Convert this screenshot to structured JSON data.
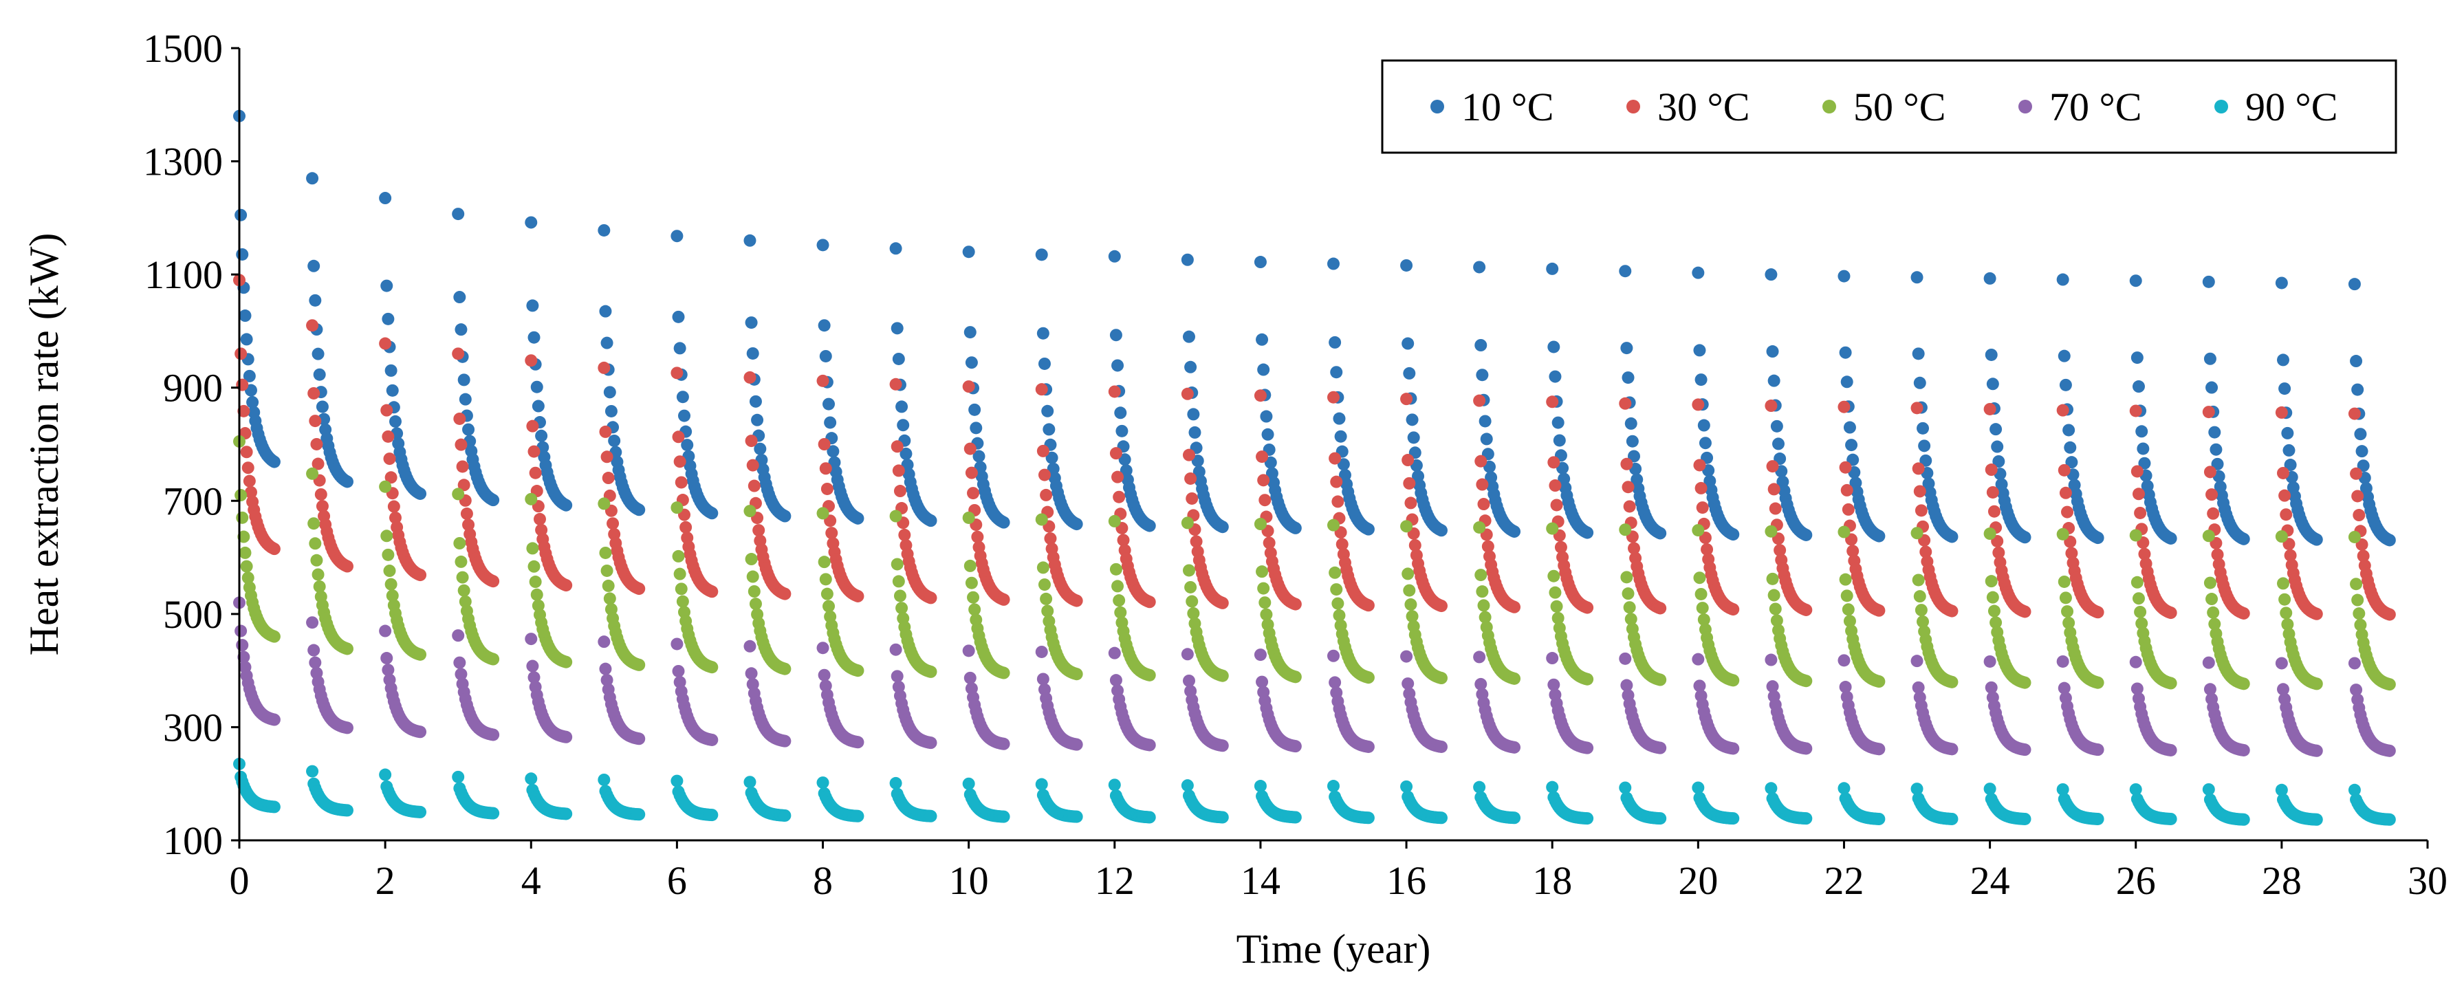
{
  "chart_data": {
    "type": "scatter",
    "title": "",
    "xlabel": "Time (year)",
    "ylabel": "Heat extraction rate (kW)",
    "xlim": [
      0,
      30
    ],
    "ylim": [
      100,
      1500
    ],
    "xticks": [
      0,
      2,
      4,
      6,
      8,
      10,
      12,
      14,
      16,
      18,
      20,
      22,
      24,
      26,
      28,
      30
    ],
    "yticks": [
      100,
      300,
      500,
      700,
      900,
      1100,
      1300,
      1500
    ],
    "grid": false,
    "legend_position": "top-right",
    "x_definition": "For each year y = 0..29, each series has 25 markers at x = y + 0.02*k (k = 0..24); marker k value decays from peak toward trough.",
    "years": [
      0,
      1,
      2,
      3,
      4,
      5,
      6,
      7,
      8,
      9,
      10,
      11,
      12,
      13,
      14,
      15,
      16,
      17,
      18,
      19,
      20,
      21,
      22,
      23,
      24,
      25,
      26,
      27,
      28,
      29
    ],
    "points_per_year": 25,
    "point_spacing_years": 0.02,
    "series": [
      {
        "name": "10 °C",
        "color": "#2E75B6",
        "peak": [
          1380,
          1270,
          1235,
          1207,
          1192,
          1178,
          1168,
          1160,
          1152,
          1146,
          1140,
          1135,
          1132,
          1126,
          1122,
          1119,
          1116,
          1113,
          1110,
          1106,
          1103,
          1100,
          1097,
          1095,
          1093,
          1091,
          1089,
          1087,
          1085,
          1083
        ],
        "secondary": [
          1205,
          1115,
          1080,
          1060,
          1045,
          1035,
          1025,
          1015,
          1010,
          1005,
          998,
          996,
          993,
          990,
          985,
          980,
          978,
          975,
          972,
          970,
          966,
          964,
          962,
          960,
          958,
          956,
          953,
          951,
          949,
          947
        ],
        "trough": [
          760,
          726,
          705,
          694,
          685,
          677,
          671,
          666,
          662,
          658,
          655,
          652,
          649,
          647,
          645,
          643,
          641,
          639,
          637,
          636,
          634,
          633,
          631,
          630,
          629,
          628,
          627,
          626,
          625,
          624
        ]
      },
      {
        "name": "30 °C",
        "color": "#D9534F",
        "peak": [
          1090,
          1010,
          978,
          960,
          948,
          935,
          926,
          918,
          912,
          906,
          902,
          897,
          893,
          889,
          886,
          883,
          880,
          877,
          875,
          872,
          870,
          868,
          866,
          864,
          862,
          860,
          859,
          857,
          856,
          854
        ],
        "secondary": [
          960,
          890,
          860,
          845,
          832,
          822,
          813,
          806,
          800,
          796,
          792,
          788,
          784,
          781,
          778,
          775,
          772,
          770,
          768,
          765,
          763,
          761,
          759,
          757,
          755,
          754,
          752,
          751,
          749,
          748
        ],
        "trough": [
          608,
          578,
          563,
          552,
          545,
          539,
          534,
          530,
          526,
          523,
          520,
          518,
          516,
          514,
          512,
          510,
          509,
          507,
          506,
          505,
          503,
          502,
          501,
          500,
          499,
          498,
          497,
          496,
          495,
          494
        ]
      },
      {
        "name": "50 °C",
        "color": "#8DB843",
        "peak": [
          805,
          748,
          725,
          712,
          703,
          695,
          688,
          682,
          678,
          673,
          670,
          667,
          664,
          661,
          659,
          657,
          655,
          653,
          651,
          649,
          648,
          646,
          645,
          643,
          642,
          641,
          639,
          638,
          637,
          636
        ],
        "secondary": [
          710,
          660,
          638,
          625,
          616,
          608,
          602,
          597,
          592,
          588,
          585,
          582,
          579,
          577,
          575,
          573,
          571,
          569,
          567,
          565,
          564,
          562,
          561,
          560,
          558,
          557,
          556,
          555,
          554,
          553
        ],
        "trough": [
          455,
          434,
          424,
          416,
          411,
          406,
          402,
          399,
          396,
          394,
          392,
          390,
          388,
          387,
          385,
          384,
          383,
          382,
          381,
          380,
          379,
          378,
          377,
          376,
          375,
          375,
          374,
          373,
          373,
          372
        ]
      },
      {
        "name": "70 °C",
        "color": "#8E65AE",
        "peak": [
          520,
          485,
          470,
          462,
          456,
          451,
          447,
          443,
          440,
          437,
          435,
          433,
          431,
          429,
          428,
          426,
          425,
          424,
          422,
          421,
          420,
          419,
          418,
          417,
          416,
          416,
          415,
          414,
          413,
          413
        ],
        "secondary": [
          470,
          436,
          422,
          414,
          408,
          403,
          399,
          395,
          392,
          390,
          387,
          385,
          383,
          382,
          380,
          379,
          377,
          376,
          375,
          374,
          373,
          372,
          371,
          370,
          370,
          369,
          368,
          367,
          367,
          366
        ],
        "trough": [
          310,
          296,
          289,
          284,
          280,
          277,
          275,
          273,
          271,
          270,
          268,
          267,
          266,
          265,
          264,
          263,
          263,
          262,
          261,
          261,
          260,
          260,
          259,
          259,
          258,
          258,
          257,
          257,
          256,
          256
        ]
      },
      {
        "name": "90 °C",
        "color": "#17B3C9",
        "peak": [
          235,
          222,
          216,
          212,
          209,
          207,
          205,
          203,
          202,
          201,
          200,
          199,
          198,
          197,
          196,
          196,
          195,
          194,
          194,
          193,
          193,
          192,
          192,
          191,
          191,
          190,
          190,
          190,
          189,
          189
        ],
        "secondary": [
          212,
          200,
          195,
          192,
          189,
          187,
          186,
          184,
          183,
          182,
          181,
          180,
          179,
          179,
          178,
          177,
          177,
          176,
          176,
          175,
          175,
          174,
          174,
          174,
          173,
          173,
          173,
          172,
          172,
          172
        ],
        "trough": [
          158,
          152,
          149,
          147,
          146,
          145,
          144,
          143,
          142,
          142,
          141,
          141,
          140,
          140,
          140,
          139,
          139,
          139,
          138,
          138,
          138,
          138,
          137,
          137,
          137,
          137,
          137,
          136,
          136,
          136
        ]
      }
    ]
  }
}
